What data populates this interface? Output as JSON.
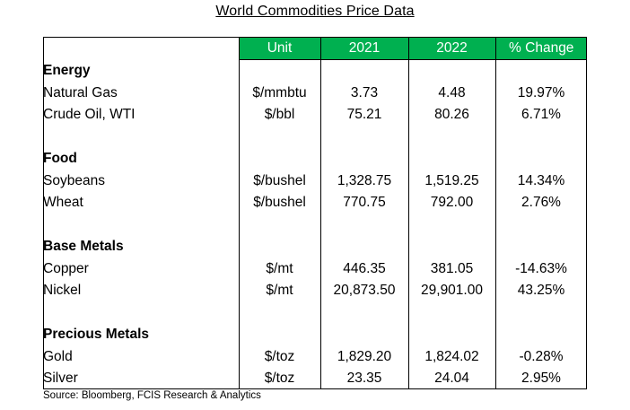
{
  "title": "World Commodities Price Data",
  "headers": {
    "unit": "Unit",
    "y2021": "2021",
    "y2022": "2022",
    "change": "% Change"
  },
  "colors": {
    "header_bg": "#00b050",
    "header_text": "#ffffff"
  },
  "sections": [
    {
      "name": "Energy",
      "rows": [
        {
          "commodity": "Natural Gas",
          "unit": "$/mmbtu",
          "y2021": "3.73",
          "y2022": "4.48",
          "change": "19.97%"
        },
        {
          "commodity": "Crude Oil, WTI",
          "unit": "$/bbl",
          "y2021": "75.21",
          "y2022": "80.26",
          "change": "6.71%"
        }
      ]
    },
    {
      "name": "Food",
      "rows": [
        {
          "commodity": "Soybeans",
          "unit": "$/bushel",
          "y2021": "1,328.75",
          "y2022": "1,519.25",
          "change": "14.34%"
        },
        {
          "commodity": "Wheat",
          "unit": "$/bushel",
          "y2021": "770.75",
          "y2022": "792.00",
          "change": "2.76%"
        }
      ]
    },
    {
      "name": "Base Metals",
      "rows": [
        {
          "commodity": "Copper",
          "unit": "$/mt",
          "y2021": "446.35",
          "y2022": "381.05",
          "change": "-14.63%"
        },
        {
          "commodity": "Nickel",
          "unit": "$/mt",
          "y2021": "20,873.50",
          "y2022": "29,901.00",
          "change": "43.25%"
        }
      ]
    },
    {
      "name": "Precious Metals",
      "rows": [
        {
          "commodity": "Gold",
          "unit": "$/toz",
          "y2021": "1,829.20",
          "y2022": "1,824.02",
          "change": "-0.28%"
        },
        {
          "commodity": "Silver",
          "unit": "$/toz",
          "y2021": "23.35",
          "y2022": "24.04",
          "change": "2.95%"
        }
      ]
    }
  ],
  "source": "Source:  Bloomberg, FCIS Research & Analytics"
}
